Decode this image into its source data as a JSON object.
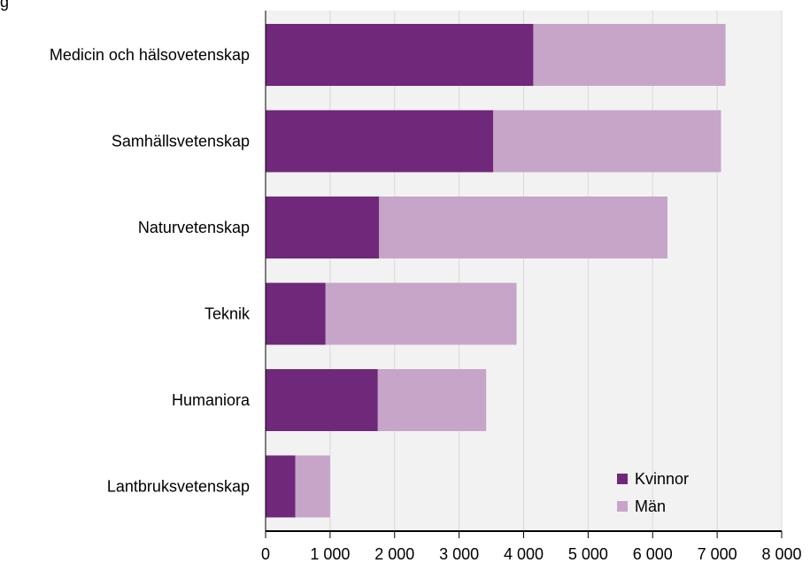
{
  "chart_title_fragment": "g",
  "chart_data": {
    "type": "bar",
    "orientation": "horizontal",
    "stacked": true,
    "categories": [
      "Medicin och hälsovetenskap",
      "Samhällsvetenskap",
      "Naturvetenskap",
      "Teknik",
      "Humaniora",
      "Lantbruksvetenskap"
    ],
    "series": [
      {
        "name": "Kvinnor",
        "color": "#70287a",
        "values": [
          4150,
          3530,
          1760,
          930,
          1740,
          460
        ]
      },
      {
        "name": "Män",
        "color": "#c6a5c9",
        "values": [
          2980,
          3530,
          4470,
          2960,
          1680,
          540
        ]
      }
    ],
    "xlim": [
      0,
      8000
    ],
    "x_ticks": [
      0,
      1000,
      2000,
      3000,
      4000,
      5000,
      6000,
      7000,
      8000
    ],
    "x_tick_labels": [
      "0",
      "1 000",
      "2 000",
      "3 000",
      "4 000",
      "5 000",
      "6 000",
      "7 000",
      "8 000"
    ],
    "grid": true,
    "legend_position": "bottom-right",
    "plot_background": "#f2f2f2",
    "gridline_color": "#d9d9d9"
  }
}
